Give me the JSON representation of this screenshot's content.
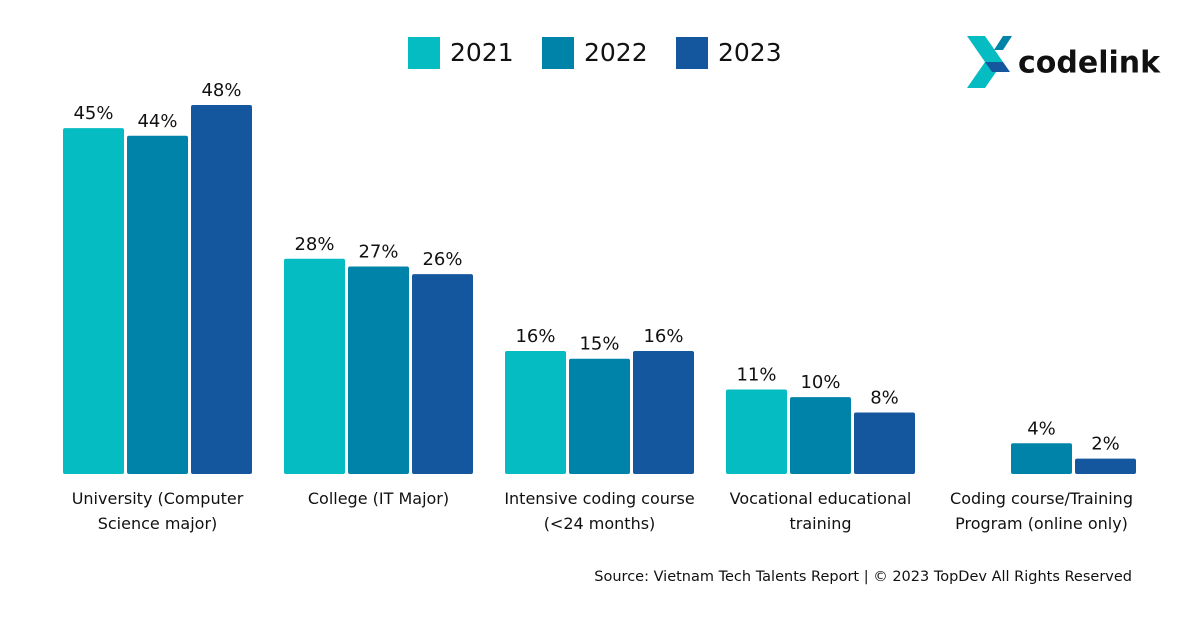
{
  "chart_data": {
    "type": "bar",
    "logo": "codelink",
    "source": "Source: Vietnam Tech Talents Report | © 2023 TopDev All Rights Reserved",
    "categories": [
      "University (Computer Science major)",
      "College (IT Major)",
      "Intensive coding course (<24 months)",
      "Vocational educational training",
      "Coding course/Training Program (online only)"
    ],
    "series": [
      {
        "name": "2021",
        "color": "#05bcc3",
        "values": [
          45,
          28,
          16,
          11,
          null
        ],
        "value_labels": [
          "45%",
          "28%",
          "16%",
          "11%",
          null
        ]
      },
      {
        "name": "2022",
        "color": "#0083a8",
        "values": [
          44,
          27,
          15,
          10,
          4
        ],
        "value_labels": [
          "44%",
          "27%",
          "15%",
          "10%",
          "4%"
        ]
      },
      {
        "name": "2023",
        "color": "#15579e",
        "values": [
          48,
          26,
          16,
          8,
          2
        ],
        "value_labels": [
          "48%",
          "26%",
          "16%",
          "8%",
          "2%"
        ]
      }
    ],
    "ylim": [
      0,
      48
    ],
    "legend": "top"
  }
}
